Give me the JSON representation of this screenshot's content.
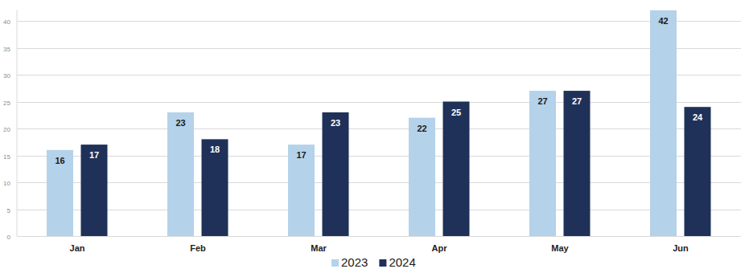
{
  "chart_data": {
    "type": "bar",
    "categories": [
      "Jan",
      "Feb",
      "Mar",
      "Apr",
      "May",
      "Jun"
    ],
    "series": [
      {
        "name": "2023",
        "color": "#b4d2ea",
        "values": [
          16,
          23,
          17,
          22,
          27,
          42
        ]
      },
      {
        "name": "2024",
        "color": "#1f3158",
        "values": [
          17,
          18,
          23,
          25,
          27,
          24
        ]
      }
    ],
    "ylim": [
      0,
      42
    ],
    "yticks": [
      0,
      5,
      10,
      15,
      20,
      25,
      30,
      35,
      40
    ],
    "grid": true,
    "legend": "bottom",
    "data_labels": true
  }
}
